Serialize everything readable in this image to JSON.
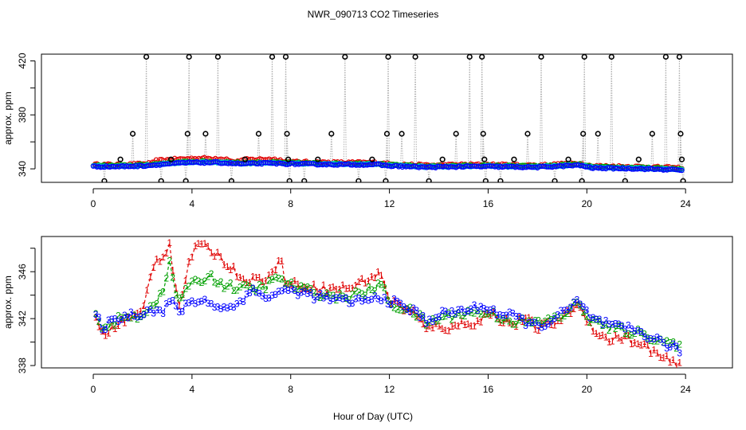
{
  "chart_data": {
    "title": "NWR_090713  CO2 Timeseries",
    "xlabel": "Hour of Day (UTC)",
    "colors": {
      "black": "#000000",
      "red": "#e00000",
      "green": "#00a000",
      "blue": "#0000ff",
      "cyan": "#00c8c8",
      "grey": "#b0b0b0"
    },
    "panels": [
      {
        "type": "scatter",
        "ylabel": "approx. ppm",
        "xlim": [
          -2.1,
          25.9
        ],
        "ylim": [
          330,
          425
        ],
        "xticks": [
          0,
          4,
          8,
          12,
          16,
          20,
          24
        ],
        "xtick_labels": [
          "0",
          "4",
          "8",
          "12",
          "16",
          "20",
          "24"
        ],
        "yticks": [
          340,
          360,
          380,
          400,
          420
        ],
        "ytick_labels": [
          "340",
          "",
          "380",
          "",
          "420"
        ],
        "calibration_spikes": [
          {
            "x": 0.45,
            "y": 331
          },
          {
            "x": 1.1,
            "y": 347
          },
          {
            "x": 1.6,
            "y": 366
          },
          {
            "x": 2.15,
            "y": 423
          },
          {
            "x": 2.75,
            "y": 331
          },
          {
            "x": 3.15,
            "y": 347
          },
          {
            "x": 3.75,
            "y": 331
          },
          {
            "x": 3.82,
            "y": 366
          },
          {
            "x": 3.88,
            "y": 423
          },
          {
            "x": 4.55,
            "y": 366
          },
          {
            "x": 5.05,
            "y": 423
          },
          {
            "x": 5.6,
            "y": 331
          },
          {
            "x": 6.15,
            "y": 347
          },
          {
            "x": 6.7,
            "y": 366
          },
          {
            "x": 7.25,
            "y": 423
          },
          {
            "x": 7.8,
            "y": 423
          },
          {
            "x": 7.85,
            "y": 366
          },
          {
            "x": 7.9,
            "y": 347
          },
          {
            "x": 7.95,
            "y": 331
          },
          {
            "x": 8.55,
            "y": 331
          },
          {
            "x": 9.1,
            "y": 347
          },
          {
            "x": 9.65,
            "y": 366
          },
          {
            "x": 10.2,
            "y": 423
          },
          {
            "x": 10.75,
            "y": 331
          },
          {
            "x": 11.3,
            "y": 347
          },
          {
            "x": 11.85,
            "y": 331
          },
          {
            "x": 11.9,
            "y": 366
          },
          {
            "x": 11.95,
            "y": 423
          },
          {
            "x": 12.5,
            "y": 366
          },
          {
            "x": 13.05,
            "y": 423
          },
          {
            "x": 13.6,
            "y": 331
          },
          {
            "x": 14.15,
            "y": 347
          },
          {
            "x": 14.7,
            "y": 366
          },
          {
            "x": 15.25,
            "y": 423
          },
          {
            "x": 15.75,
            "y": 423
          },
          {
            "x": 15.8,
            "y": 366
          },
          {
            "x": 15.85,
            "y": 347
          },
          {
            "x": 15.9,
            "y": 331
          },
          {
            "x": 16.5,
            "y": 331
          },
          {
            "x": 17.05,
            "y": 347
          },
          {
            "x": 17.6,
            "y": 366
          },
          {
            "x": 18.15,
            "y": 423
          },
          {
            "x": 18.7,
            "y": 331
          },
          {
            "x": 19.25,
            "y": 347
          },
          {
            "x": 19.8,
            "y": 331
          },
          {
            "x": 19.85,
            "y": 366
          },
          {
            "x": 19.9,
            "y": 423
          },
          {
            "x": 20.45,
            "y": 366
          },
          {
            "x": 21.0,
            "y": 423
          },
          {
            "x": 21.55,
            "y": 331
          },
          {
            "x": 22.1,
            "y": 347
          },
          {
            "x": 22.65,
            "y": 366
          },
          {
            "x": 23.2,
            "y": 423
          },
          {
            "x": 23.75,
            "y": 423
          },
          {
            "x": 23.8,
            "y": 366
          },
          {
            "x": 23.85,
            "y": 347
          },
          {
            "x": 23.9,
            "y": 331
          }
        ],
        "baseline_anchors": [
          [
            0,
            342
          ],
          [
            1,
            342
          ],
          [
            2,
            342.5
          ],
          [
            3,
            344
          ],
          [
            4,
            345
          ],
          [
            5,
            345
          ],
          [
            6,
            344
          ],
          [
            7,
            344.5
          ],
          [
            8,
            344
          ],
          [
            10,
            343.5
          ],
          [
            11.5,
            343.5
          ],
          [
            12,
            342.5
          ],
          [
            13.5,
            341.5
          ],
          [
            15,
            342
          ],
          [
            16,
            342
          ],
          [
            18,
            341.5
          ],
          [
            19.7,
            343
          ],
          [
            20.2,
            341
          ],
          [
            22,
            340.5
          ],
          [
            23.8,
            339.5
          ]
        ]
      },
      {
        "type": "scatter",
        "ylabel": "approx. ppm",
        "xlim": [
          -2.1,
          25.9
        ],
        "ylim": [
          337.8,
          349
        ],
        "xticks": [
          0,
          4,
          8,
          12,
          16,
          20,
          24
        ],
        "xtick_labels": [
          "0",
          "4",
          "8",
          "12",
          "16",
          "20",
          "24"
        ],
        "yticks": [
          338,
          340,
          342,
          344,
          346,
          348
        ],
        "ytick_labels": [
          "338",
          "",
          "342",
          "",
          "346",
          ""
        ],
        "series": [
          {
            "name": "1",
            "marker": "1",
            "color": "red",
            "anchors": [
              [
                0.1,
                341.8
              ],
              [
                0.5,
                340.5
              ],
              [
                0.9,
                341.5
              ],
              [
                1.5,
                342
              ],
              [
                2.0,
                342.5
              ],
              [
                2.2,
                344.5
              ],
              [
                2.4,
                346.5
              ],
              [
                2.6,
                347
              ],
              [
                2.9,
                347.5
              ],
              [
                3.1,
                348.5
              ],
              [
                3.3,
                345
              ],
              [
                3.5,
                343
              ],
              [
                3.8,
                346
              ],
              [
                4.1,
                348.2
              ],
              [
                4.6,
                348
              ],
              [
                5.0,
                347.5
              ],
              [
                5.5,
                346.5
              ],
              [
                6.0,
                345.5
              ],
              [
                6.5,
                345.3
              ],
              [
                7.0,
                345.5
              ],
              [
                7.4,
                346
              ],
              [
                7.6,
                347.5
              ],
              [
                7.8,
                345
              ],
              [
                8.5,
                344.8
              ],
              [
                9.5,
                344.5
              ],
              [
                10.5,
                344.7
              ],
              [
                11.2,
                345.5
              ],
              [
                11.7,
                345.8
              ],
              [
                12.0,
                343.5
              ],
              [
                12.5,
                343
              ],
              [
                13.0,
                342.5
              ],
              [
                13.5,
                341
              ],
              [
                14.0,
                341.5
              ],
              [
                14.5,
                341
              ],
              [
                15.0,
                341.8
              ],
              [
                15.5,
                341.5
              ],
              [
                16.0,
                342.5
              ],
              [
                16.5,
                342
              ],
              [
                17.0,
                341.5
              ],
              [
                17.5,
                342
              ],
              [
                18.0,
                341.2
              ],
              [
                18.5,
                341.5
              ],
              [
                19.0,
                342
              ],
              [
                19.6,
                343.2
              ],
              [
                20.0,
                342
              ],
              [
                20.5,
                340.5
              ],
              [
                21.0,
                340.2
              ],
              [
                21.5,
                340.5
              ],
              [
                22.0,
                339.8
              ],
              [
                22.5,
                339.5
              ],
              [
                23.0,
                338.7
              ],
              [
                23.5,
                338.2
              ],
              [
                23.8,
                338.0
              ]
            ]
          },
          {
            "name": "2",
            "marker": "2",
            "color": "green",
            "anchors": [
              [
                0.1,
                342.1
              ],
              [
                0.5,
                341.2
              ],
              [
                1.0,
                341.9
              ],
              [
                1.5,
                342.1
              ],
              [
                2.0,
                342.3
              ],
              [
                2.4,
                343.3
              ],
              [
                2.8,
                344
              ],
              [
                3.1,
                346.8
              ],
              [
                3.4,
                343.5
              ],
              [
                3.8,
                344.5
              ],
              [
                4.2,
                345.2
              ],
              [
                4.8,
                345.6
              ],
              [
                5.3,
                344.8
              ],
              [
                6.0,
                344.6
              ],
              [
                6.5,
                344.5
              ],
              [
                7.0,
                344.8
              ],
              [
                7.5,
                345.5
              ],
              [
                8.0,
                344.8
              ],
              [
                9.0,
                344.2
              ],
              [
                10.0,
                343.8
              ],
              [
                11.0,
                344.2
              ],
              [
                11.7,
                344.9
              ],
              [
                12.0,
                343.3
              ],
              [
                13.0,
                342.5
              ],
              [
                13.5,
                341.6
              ],
              [
                14.0,
                342
              ],
              [
                15.0,
                342.5
              ],
              [
                16.0,
                342.5
              ],
              [
                17.0,
                341.8
              ],
              [
                18.0,
                341.6
              ],
              [
                19.0,
                342.2
              ],
              [
                19.6,
                343.3
              ],
              [
                20.2,
                341.8
              ],
              [
                21.0,
                341.2
              ],
              [
                22.0,
                340.8
              ],
              [
                23.0,
                340.2
              ],
              [
                23.8,
                339.4
              ]
            ]
          },
          {
            "name": "3",
            "marker": "3",
            "color": "blue",
            "anchors": [
              [
                0.1,
                342.3
              ],
              [
                0.4,
                341.2
              ],
              [
                0.9,
                342.0
              ],
              [
                1.5,
                342.3
              ],
              [
                2.0,
                342.5
              ],
              [
                2.4,
                342.8
              ],
              [
                2.8,
                342.5
              ],
              [
                3.1,
                343.5
              ],
              [
                3.5,
                342.6
              ],
              [
                4.0,
                343.5
              ],
              [
                4.5,
                343.5
              ],
              [
                5.0,
                343.1
              ],
              [
                5.5,
                342.8
              ],
              [
                6.0,
                343.5
              ],
              [
                6.3,
                344.5
              ],
              [
                7.0,
                343.8
              ],
              [
                7.5,
                344.2
              ],
              [
                8.0,
                344.4
              ],
              [
                9.0,
                343.9
              ],
              [
                10.0,
                343.5
              ],
              [
                11.0,
                343.5
              ],
              [
                11.7,
                343.8
              ],
              [
                12.0,
                343.5
              ],
              [
                13.0,
                342.6
              ],
              [
                13.5,
                341.8
              ],
              [
                14.0,
                342.3
              ],
              [
                15.0,
                342.7
              ],
              [
                16.0,
                343
              ],
              [
                16.5,
                342.3
              ],
              [
                17.0,
                342.2
              ],
              [
                18.0,
                341.3
              ],
              [
                18.5,
                341.8
              ],
              [
                19.0,
                342.4
              ],
              [
                19.6,
                343.4
              ],
              [
                20.2,
                342
              ],
              [
                21.0,
                341.3
              ],
              [
                22.0,
                341
              ],
              [
                23.0,
                340
              ],
              [
                23.8,
                339.2
              ]
            ]
          }
        ]
      }
    ]
  }
}
